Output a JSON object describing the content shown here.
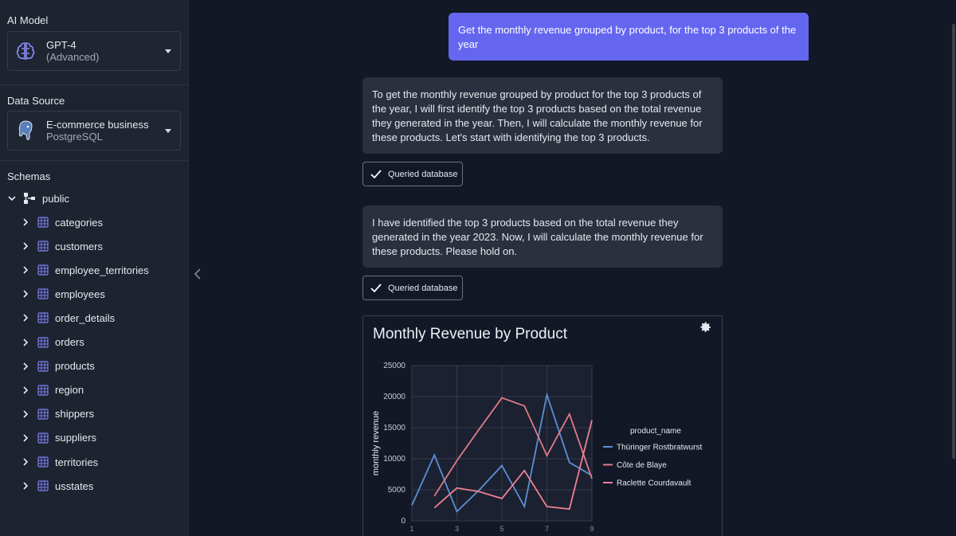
{
  "sidebar": {
    "ai_model_label": "AI Model",
    "model": {
      "name": "GPT-4",
      "sub": "(Advanced)"
    },
    "data_source_label": "Data Source",
    "source": {
      "name": "E-commerce business",
      "sub": "PostgreSQL"
    },
    "schemas_label": "Schemas",
    "schema": "public",
    "tables": [
      "categories",
      "customers",
      "employee_territories",
      "employees",
      "order_details",
      "orders",
      "products",
      "region",
      "shippers",
      "suppliers",
      "territories",
      "usstates"
    ]
  },
  "chat": {
    "user_message": "Get the monthly revenue grouped by product, for the top 3 products of the year",
    "ai_message_1": "To get the monthly revenue grouped by product for the top 3 products of the year, I will first identify the top 3 products based on the total revenue they generated in the year. Then, I will calculate the monthly revenue for these products. Let's start with identifying the top 3 products.",
    "queried_label_1": "Queried database",
    "ai_message_2": "I have identified the top 3 products based on the total revenue they generated in the year 2023. Now, I will calculate the monthly revenue for these products. Please hold on.",
    "queried_label_2": "Queried database"
  },
  "colors": {
    "accent": "#6466f0",
    "series_blue": "#5b8fd6",
    "series_pink": "#e07a8a",
    "series_rose": "#ef8093"
  },
  "chart_data": {
    "type": "line",
    "title": "Monthly Revenue by Product",
    "xlabel": "",
    "ylabel": "monthly revenue",
    "legend_title": "product_name",
    "legend_position": "right",
    "grid": true,
    "ylim": [
      0,
      25000
    ],
    "yticks": [
      0,
      5000,
      10000,
      15000,
      20000,
      25000
    ],
    "xticks": [
      1,
      3,
      5,
      7,
      9
    ],
    "xlim": [
      1,
      9
    ],
    "series": [
      {
        "name": "Thüringer Rostbratwurst",
        "color": "#5b8fd6",
        "x": [
          1,
          2,
          3,
          4,
          5,
          6,
          7,
          8,
          9
        ],
        "y": [
          2500,
          10600,
          1500,
          5000,
          8900,
          2300,
          20300,
          9400,
          7300
        ]
      },
      {
        "name": "Côte de Blaye",
        "color": "#e07a8a",
        "x": [
          2,
          3,
          4,
          5,
          6,
          7,
          8,
          9
        ],
        "y": [
          4000,
          9700,
          14800,
          19800,
          18500,
          10500,
          17200,
          6800
        ]
      },
      {
        "name": "Raclette Courdavault",
        "color": "#ef8093",
        "x": [
          2,
          3,
          4,
          5,
          6,
          7,
          8,
          9
        ],
        "y": [
          2100,
          5300,
          4700,
          3600,
          8100,
          2300,
          1900,
          16200
        ]
      }
    ]
  }
}
